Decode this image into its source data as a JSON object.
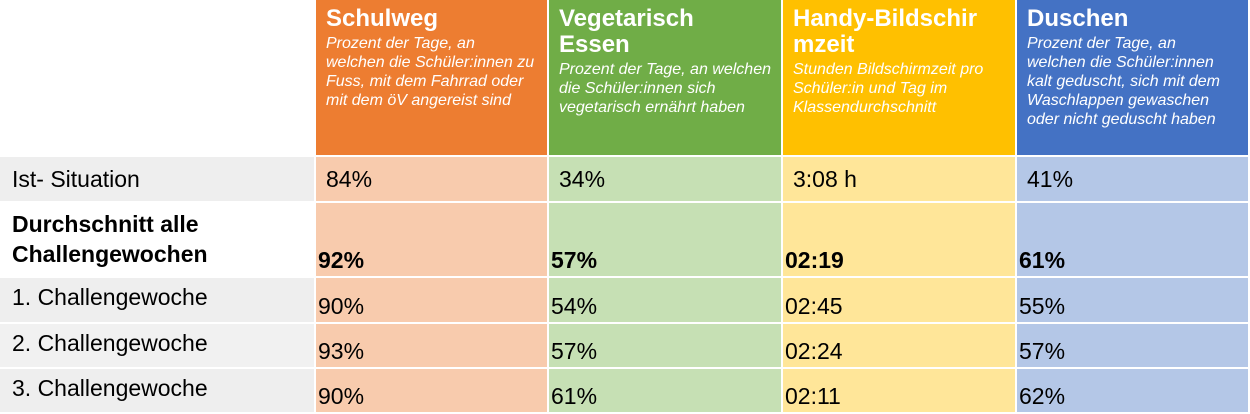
{
  "columns": [
    {
      "title": "Schulweg",
      "subtitle": "Prozent der Tage, an welchen die Schüler:innen zu Fuss, mit dem Fahrrad oder mit dem öV angereist sind"
    },
    {
      "title": "Vegetarisch Essen",
      "subtitle": "Prozent der Tage, an welchen die Schüler:innen sich vegetarisch ernährt haben"
    },
    {
      "title": "Handy-Bildschirmzeit",
      "subtitle": "Stunden Bildschirmzeit pro Schüler:in und Tag im Klassendurchschnitt"
    },
    {
      "title": "Duschen",
      "subtitle": "Prozent der Tage, an welchen die Schüler:innen kalt geduscht, sich mit dem Waschlappen gewaschen oder nicht geduscht haben"
    }
  ],
  "colors": {
    "orange": "#ed7d31",
    "orange_light": "#f8cbad",
    "green": "#70ad47",
    "green_light": "#c6e0b4",
    "yellow": "#ffc000",
    "yellow_light": "#ffe699",
    "blue": "#4472c4",
    "blue_light": "#b4c7e7"
  },
  "rows": [
    {
      "label": "Ist- Situation",
      "values": [
        "84%",
        "34%",
        "3:08 h",
        "41%"
      ]
    },
    {
      "label": "Durchschnitt alle Challengewochen",
      "values": [
        "92%",
        "57%",
        "02:19",
        "61%"
      ]
    },
    {
      "label": "1. Challengewoche",
      "values": [
        "90%",
        "54%",
        "02:45",
        "55%"
      ]
    },
    {
      "label": "2. Challengewoche",
      "values": [
        "93%",
        "57%",
        "02:24",
        "57%"
      ]
    },
    {
      "label": "3. Challengewoche",
      "values": [
        "90%",
        "61%",
        "02:11",
        "62%"
      ]
    }
  ]
}
